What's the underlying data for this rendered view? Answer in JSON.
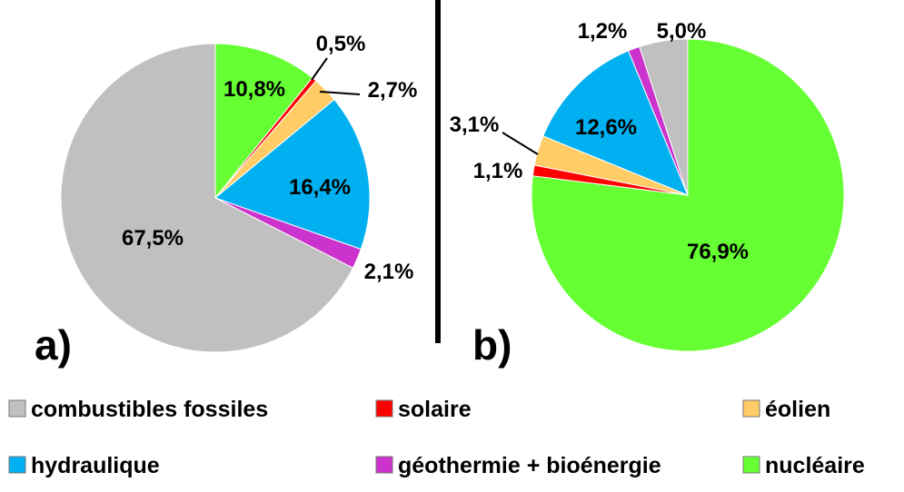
{
  "colors": {
    "combustibles fossiles": "#c0c0c0",
    "solaire": "#ff0000",
    "éolien": "#ffcc66",
    "hydraulique": "#00b0f0",
    "géothermie + bioénergie": "#cc33cc",
    "nucléaire": "#66ff33"
  },
  "legend": [
    {
      "label": "combustibles fossiles"
    },
    {
      "label": "solaire"
    },
    {
      "label": "éolien"
    },
    {
      "label": "hydraulique"
    },
    {
      "label": "géothermie + bioénergie"
    },
    {
      "label": "nucléaire"
    }
  ],
  "chart_data": [
    {
      "type": "pie",
      "panel_label": "a)",
      "slices": [
        {
          "label": "nucléaire",
          "value": 10.8,
          "text": "10,8%"
        },
        {
          "label": "solaire",
          "value": 0.5,
          "text": "0,5%"
        },
        {
          "label": "éolien",
          "value": 2.7,
          "text": "2,7%"
        },
        {
          "label": "hydraulique",
          "value": 16.4,
          "text": "16,4%"
        },
        {
          "label": "géothermie + bioénergie",
          "value": 2.1,
          "text": "2,1%"
        },
        {
          "label": "combustibles fossiles",
          "value": 67.5,
          "text": "67,5%"
        }
      ]
    },
    {
      "type": "pie",
      "panel_label": "b)",
      "slices": [
        {
          "label": "nucléaire",
          "value": 76.9,
          "text": "76,9%"
        },
        {
          "label": "solaire",
          "value": 1.1,
          "text": "1,1%"
        },
        {
          "label": "éolien",
          "value": 3.1,
          "text": "3,1%"
        },
        {
          "label": "hydraulique",
          "value": 12.6,
          "text": "12,6%"
        },
        {
          "label": "géothermie + bioénergie",
          "value": 1.2,
          "text": "1,2%"
        },
        {
          "label": "combustibles fossiles",
          "value": 5.0,
          "text": "5,0%"
        }
      ]
    }
  ]
}
